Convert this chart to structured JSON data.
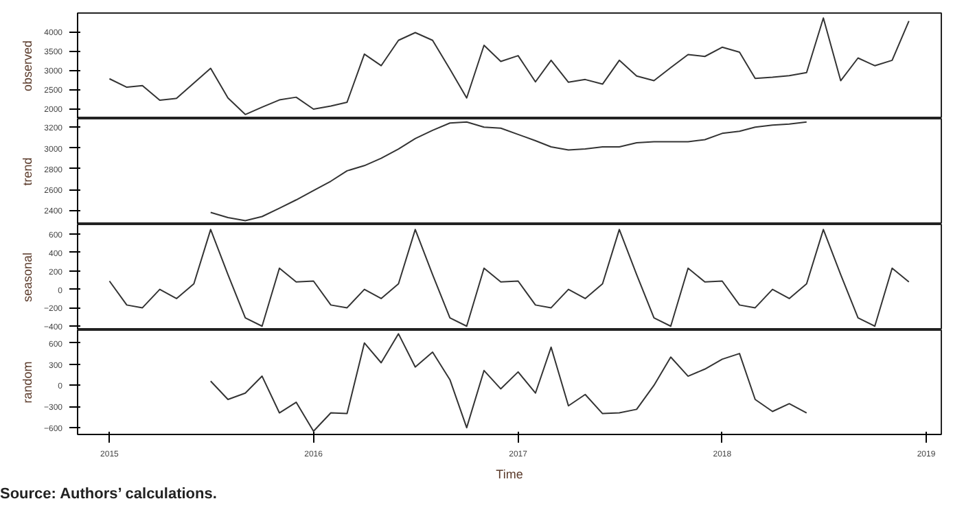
{
  "chart_data": [
    {
      "type": "line",
      "ylabel": "observed",
      "tick_labels": "y",
      "grid": false,
      "x": [
        "2015-01",
        "2015-02",
        "2015-03",
        "2015-04",
        "2015-05",
        "2015-06",
        "2015-07",
        "2015-08",
        "2015-09",
        "2015-10",
        "2015-11",
        "2015-12",
        "2016-01",
        "2016-02",
        "2016-03",
        "2016-04",
        "2016-05",
        "2016-06",
        "2016-07",
        "2016-08",
        "2016-09",
        "2016-10",
        "2016-11",
        "2016-12",
        "2017-01",
        "2017-02",
        "2017-03",
        "2017-04",
        "2017-05",
        "2017-06",
        "2017-07",
        "2017-08",
        "2017-09",
        "2017-10",
        "2017-11",
        "2017-12",
        "2018-01",
        "2018-02",
        "2018-03",
        "2018-04",
        "2018-05",
        "2018-06",
        "2018-07",
        "2018-08",
        "2018-09",
        "2018-10",
        "2018-11",
        "2018-12"
      ],
      "xlim": [
        "2014-11-05",
        "2019-01-28"
      ],
      "ylim": [
        1740,
        4489
      ],
      "yticks": [
        2000,
        2500,
        3000,
        3500,
        4000
      ],
      "series": [
        {
          "color": "#333333",
          "values": [
            2780,
            2560,
            2600,
            2220,
            2270,
            2670,
            3050,
            2280,
            1850,
            2040,
            2230,
            2300,
            1990,
            2070,
            2170,
            3420,
            3120,
            3780,
            3980,
            3780,
            3030,
            2280,
            3650,
            3230,
            3380,
            2700,
            3260,
            2690,
            2760,
            2640,
            3260,
            2850,
            2730,
            3070,
            3410,
            3360,
            3600,
            3470,
            2790,
            2820,
            2860,
            2940,
            4360,
            2730,
            3320,
            3120,
            3260,
            4280
          ]
        }
      ]
    },
    {
      "type": "line",
      "ylabel": "trend",
      "tick_labels": "y",
      "grid": false,
      "x": [
        "2015-07",
        "2015-08",
        "2015-09",
        "2015-10",
        "2015-11",
        "2015-12",
        "2016-01",
        "2016-02",
        "2016-03",
        "2016-04",
        "2016-05",
        "2016-06",
        "2016-07",
        "2016-08",
        "2016-09",
        "2016-10",
        "2016-11",
        "2016-12",
        "2017-01",
        "2017-02",
        "2017-03",
        "2017-04",
        "2017-05",
        "2017-06",
        "2017-07",
        "2017-08",
        "2017-09",
        "2017-10",
        "2017-11",
        "2017-12",
        "2018-01",
        "2018-02",
        "2018-03",
        "2018-04",
        "2018-05",
        "2018-06"
      ],
      "xlim": [
        "2014-11-05",
        "2019-01-28"
      ],
      "ylim": [
        2264,
        3281
      ],
      "yticks": [
        2400,
        2600,
        2800,
        3000,
        3200
      ],
      "series": [
        {
          "color": "#333333",
          "values": [
            2380,
            2330,
            2300,
            2340,
            2420,
            2500,
            2590,
            2680,
            2780,
            2830,
            2900,
            2990,
            3090,
            3170,
            3240,
            3250,
            3200,
            3190,
            3130,
            3070,
            3010,
            2980,
            2990,
            3010,
            3010,
            3050,
            3060,
            3060,
            3060,
            3080,
            3140,
            3160,
            3200,
            3220,
            3230,
            3250
          ]
        }
      ]
    },
    {
      "type": "line",
      "ylabel": "seasonal",
      "tick_labels": "y",
      "grid": false,
      "x": [
        "2015-01",
        "2015-02",
        "2015-03",
        "2015-04",
        "2015-05",
        "2015-06",
        "2015-07",
        "2015-08",
        "2015-09",
        "2015-10",
        "2015-11",
        "2015-12",
        "2016-01",
        "2016-02",
        "2016-03",
        "2016-04",
        "2016-05",
        "2016-06",
        "2016-07",
        "2016-08",
        "2016-09",
        "2016-10",
        "2016-11",
        "2016-12",
        "2017-01",
        "2017-02",
        "2017-03",
        "2017-04",
        "2017-05",
        "2017-06",
        "2017-07",
        "2017-08",
        "2017-09",
        "2017-10",
        "2017-11",
        "2017-12",
        "2018-01",
        "2018-02",
        "2018-03",
        "2018-04",
        "2018-05",
        "2018-06",
        "2018-07",
        "2018-08",
        "2018-09",
        "2018-10",
        "2018-11",
        "2018-12"
      ],
      "xlim": [
        "2014-11-05",
        "2019-01-28"
      ],
      "ylim": [
        -443,
        705
      ],
      "yticks": [
        -400,
        -200,
        0,
        200,
        400,
        600
      ],
      "series": [
        {
          "color": "#333333",
          "values": [
            90,
            -170,
            -200,
            0,
            -100,
            60,
            650,
            160,
            -310,
            -400,
            230,
            80,
            90,
            -170,
            -200,
            0,
            -100,
            60,
            650,
            160,
            -310,
            -400,
            230,
            80,
            90,
            -170,
            -200,
            0,
            -100,
            60,
            650,
            160,
            -310,
            -400,
            230,
            80,
            90,
            -170,
            -200,
            0,
            -100,
            60,
            650,
            160,
            -310,
            -400,
            230,
            80
          ]
        }
      ]
    },
    {
      "type": "line",
      "ylabel": "random",
      "xlabel": "Time",
      "grid": false,
      "x": [
        "2015-07",
        "2015-08",
        "2015-09",
        "2015-10",
        "2015-11",
        "2015-12",
        "2016-01",
        "2016-02",
        "2016-03",
        "2016-04",
        "2016-05",
        "2016-06",
        "2016-07",
        "2016-08",
        "2016-09",
        "2016-10",
        "2016-11",
        "2016-12",
        "2017-01",
        "2017-02",
        "2017-03",
        "2017-04",
        "2017-05",
        "2017-06",
        "2017-07",
        "2017-08",
        "2017-09",
        "2017-10",
        "2017-11",
        "2017-12",
        "2018-01",
        "2018-02",
        "2018-03",
        "2018-04",
        "2018-05",
        "2018-06"
      ],
      "xlim": [
        "2014-11-05",
        "2019-01-28"
      ],
      "xticks": [
        {
          "value": "2015-01-01",
          "label": "2015"
        },
        {
          "value": "2016-01-01",
          "label": "2016"
        },
        {
          "value": "2017-01-01",
          "label": "2017"
        },
        {
          "value": "2018-01-01",
          "label": "2018"
        },
        {
          "value": "2019-01-01",
          "label": "2019"
        }
      ],
      "ylim": [
        -696,
        782
      ],
      "yticks": [
        -600,
        -300,
        0,
        300,
        600
      ],
      "series": [
        {
          "color": "#333333",
          "values": [
            60,
            -200,
            -110,
            130,
            -390,
            -240,
            -650,
            -390,
            -400,
            600,
            320,
            730,
            260,
            470,
            80,
            -600,
            210,
            -50,
            190,
            -110,
            540,
            -290,
            -130,
            -400,
            -390,
            -340,
            0,
            400,
            130,
            230,
            370,
            450,
            -200,
            -370,
            -260,
            -390
          ]
        }
      ],
      "annotations": [
        "Source: Authors’ calculations."
      ]
    }
  ]
}
